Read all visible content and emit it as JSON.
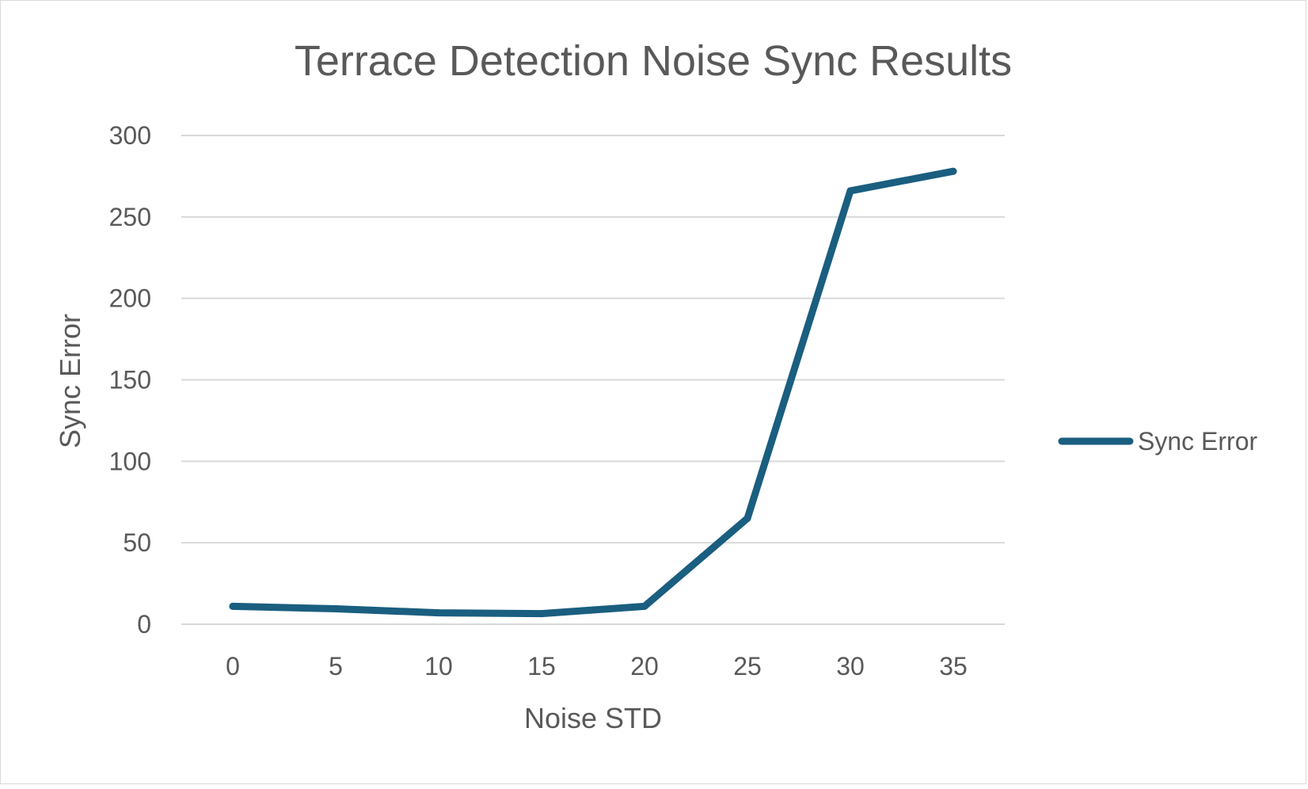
{
  "chart_data": {
    "type": "line",
    "title": "Terrace Detection Noise Sync Results",
    "xlabel": "Noise STD",
    "ylabel": "Sync Error",
    "x": [
      0,
      5,
      10,
      15,
      20,
      25,
      30,
      35
    ],
    "series": [
      {
        "name": "Sync Error",
        "color": "#1a5e80",
        "values": [
          11,
          9.5,
          7,
          6.5,
          11,
          65,
          266,
          278
        ]
      }
    ],
    "ylim": [
      0,
      300
    ],
    "yticks": [
      0,
      50,
      100,
      150,
      200,
      250,
      300
    ],
    "grid": true,
    "legend_position": "right"
  }
}
